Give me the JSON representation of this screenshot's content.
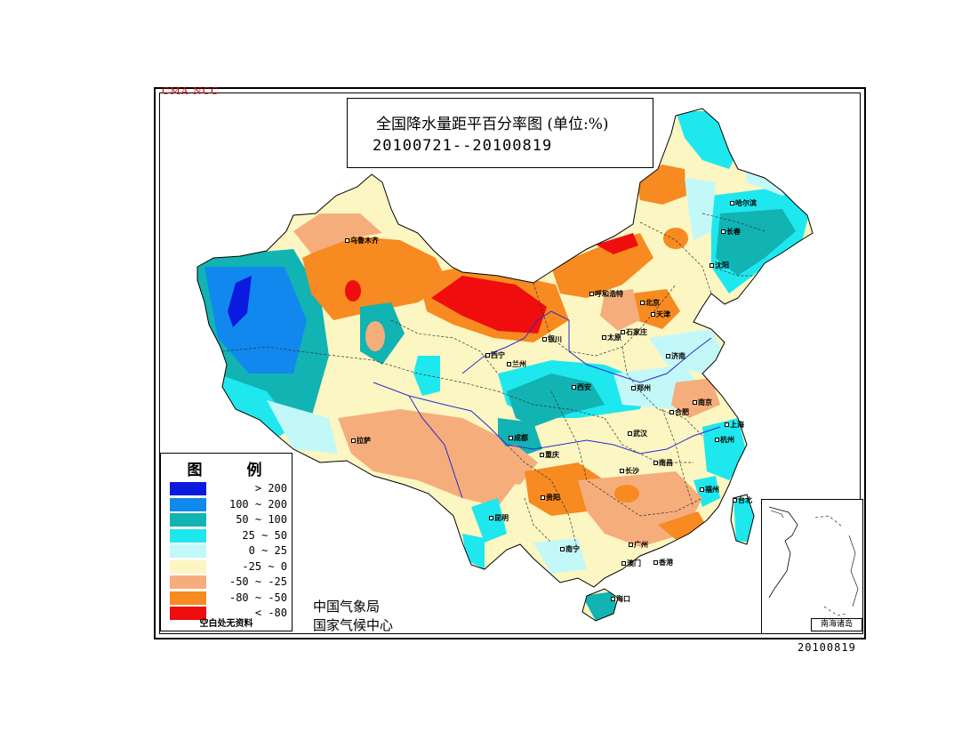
{
  "header": {
    "agency_code": "CMA  NCC",
    "title": "全国降水量距平百分率图 (单位:%)",
    "date_range": "20100721--20100819"
  },
  "legend": {
    "title": "图 例",
    "items": [
      {
        "label": "> 200",
        "color": "#0a1adf"
      },
      {
        "label": "100 ~ 200",
        "color": "#1188ee"
      },
      {
        "label": "50 ~ 100",
        "color": "#12b3b3"
      },
      {
        "label": "25 ~ 50",
        "color": "#1ee8ee"
      },
      {
        "label": "0 ~ 25",
        "color": "#c3f8f9"
      },
      {
        "label": "-25 ~ 0",
        "color": "#fcf6c2"
      },
      {
        "label": "-50 ~ -25",
        "color": "#f6ad7c"
      },
      {
        "label": "-80 ~ -50",
        "color": "#f78a20"
      },
      {
        "label": "< -80",
        "color": "#ef0d0d"
      }
    ],
    "note": "空白处无资料"
  },
  "footer": {
    "agency_line1": "中国气象局",
    "agency_line2": "国家气候中心",
    "issue_date": "20100819"
  },
  "inset": {
    "label": "南海诸岛"
  },
  "cities": [
    {
      "name": "乌鲁木齐"
    },
    {
      "name": "呼和浩特"
    },
    {
      "name": "北京"
    },
    {
      "name": "天津"
    },
    {
      "name": "哈尔滨"
    },
    {
      "name": "长春"
    },
    {
      "name": "沈阳"
    },
    {
      "name": "银川"
    },
    {
      "name": "太原"
    },
    {
      "name": "石家庄"
    },
    {
      "name": "济南"
    },
    {
      "name": "西宁"
    },
    {
      "name": "兰州"
    },
    {
      "name": "西安"
    },
    {
      "name": "郑州"
    },
    {
      "name": "合肥"
    },
    {
      "name": "南京"
    },
    {
      "name": "上海"
    },
    {
      "name": "杭州"
    },
    {
      "name": "拉萨"
    },
    {
      "name": "成都"
    },
    {
      "name": "武汉"
    },
    {
      "name": "重庆"
    },
    {
      "name": "长沙"
    },
    {
      "name": "南昌"
    },
    {
      "name": "福州"
    },
    {
      "name": "贵阳"
    },
    {
      "name": "台北"
    },
    {
      "name": "昆明"
    },
    {
      "name": "南宁"
    },
    {
      "name": "广州"
    },
    {
      "name": "澳门"
    },
    {
      "name": "香港"
    },
    {
      "name": "海口"
    }
  ]
}
